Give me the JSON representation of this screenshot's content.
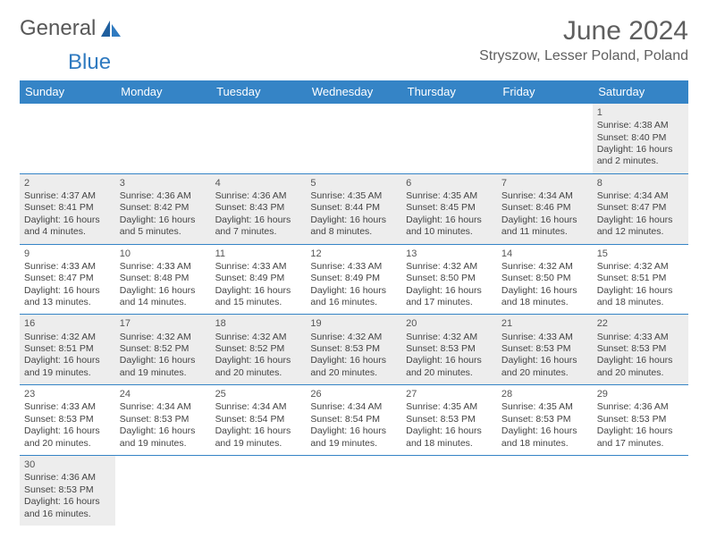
{
  "logo": {
    "part1": "General",
    "part2": "Blue"
  },
  "header": {
    "month_title": "June 2024",
    "location": "Stryszow, Lesser Poland, Poland"
  },
  "colors": {
    "header_bg": "#3584c6",
    "shaded": "#ededed",
    "text": "#444444",
    "border": "#3584c6"
  },
  "calendar": {
    "weekdays": [
      "Sunday",
      "Monday",
      "Tuesday",
      "Wednesday",
      "Thursday",
      "Friday",
      "Saturday"
    ],
    "weeks": [
      [
        {
          "empty": true
        },
        {
          "empty": true
        },
        {
          "empty": true
        },
        {
          "empty": true
        },
        {
          "empty": true
        },
        {
          "empty": true
        },
        {
          "day": "1",
          "sunrise": "Sunrise: 4:38 AM",
          "sunset": "Sunset: 8:40 PM",
          "daylight": "Daylight: 16 hours and 2 minutes.",
          "shaded": true
        }
      ],
      [
        {
          "day": "2",
          "sunrise": "Sunrise: 4:37 AM",
          "sunset": "Sunset: 8:41 PM",
          "daylight": "Daylight: 16 hours and 4 minutes.",
          "shaded": true
        },
        {
          "day": "3",
          "sunrise": "Sunrise: 4:36 AM",
          "sunset": "Sunset: 8:42 PM",
          "daylight": "Daylight: 16 hours and 5 minutes.",
          "shaded": true
        },
        {
          "day": "4",
          "sunrise": "Sunrise: 4:36 AM",
          "sunset": "Sunset: 8:43 PM",
          "daylight": "Daylight: 16 hours and 7 minutes.",
          "shaded": true
        },
        {
          "day": "5",
          "sunrise": "Sunrise: 4:35 AM",
          "sunset": "Sunset: 8:44 PM",
          "daylight": "Daylight: 16 hours and 8 minutes.",
          "shaded": true
        },
        {
          "day": "6",
          "sunrise": "Sunrise: 4:35 AM",
          "sunset": "Sunset: 8:45 PM",
          "daylight": "Daylight: 16 hours and 10 minutes.",
          "shaded": true
        },
        {
          "day": "7",
          "sunrise": "Sunrise: 4:34 AM",
          "sunset": "Sunset: 8:46 PM",
          "daylight": "Daylight: 16 hours and 11 minutes.",
          "shaded": true
        },
        {
          "day": "8",
          "sunrise": "Sunrise: 4:34 AM",
          "sunset": "Sunset: 8:47 PM",
          "daylight": "Daylight: 16 hours and 12 minutes.",
          "shaded": true
        }
      ],
      [
        {
          "day": "9",
          "sunrise": "Sunrise: 4:33 AM",
          "sunset": "Sunset: 8:47 PM",
          "daylight": "Daylight: 16 hours and 13 minutes.",
          "shaded": false
        },
        {
          "day": "10",
          "sunrise": "Sunrise: 4:33 AM",
          "sunset": "Sunset: 8:48 PM",
          "daylight": "Daylight: 16 hours and 14 minutes.",
          "shaded": false
        },
        {
          "day": "11",
          "sunrise": "Sunrise: 4:33 AM",
          "sunset": "Sunset: 8:49 PM",
          "daylight": "Daylight: 16 hours and 15 minutes.",
          "shaded": false
        },
        {
          "day": "12",
          "sunrise": "Sunrise: 4:33 AM",
          "sunset": "Sunset: 8:49 PM",
          "daylight": "Daylight: 16 hours and 16 minutes.",
          "shaded": false
        },
        {
          "day": "13",
          "sunrise": "Sunrise: 4:32 AM",
          "sunset": "Sunset: 8:50 PM",
          "daylight": "Daylight: 16 hours and 17 minutes.",
          "shaded": false
        },
        {
          "day": "14",
          "sunrise": "Sunrise: 4:32 AM",
          "sunset": "Sunset: 8:50 PM",
          "daylight": "Daylight: 16 hours and 18 minutes.",
          "shaded": false
        },
        {
          "day": "15",
          "sunrise": "Sunrise: 4:32 AM",
          "sunset": "Sunset: 8:51 PM",
          "daylight": "Daylight: 16 hours and 18 minutes.",
          "shaded": false
        }
      ],
      [
        {
          "day": "16",
          "sunrise": "Sunrise: 4:32 AM",
          "sunset": "Sunset: 8:51 PM",
          "daylight": "Daylight: 16 hours and 19 minutes.",
          "shaded": true
        },
        {
          "day": "17",
          "sunrise": "Sunrise: 4:32 AM",
          "sunset": "Sunset: 8:52 PM",
          "daylight": "Daylight: 16 hours and 19 minutes.",
          "shaded": true
        },
        {
          "day": "18",
          "sunrise": "Sunrise: 4:32 AM",
          "sunset": "Sunset: 8:52 PM",
          "daylight": "Daylight: 16 hours and 20 minutes.",
          "shaded": true
        },
        {
          "day": "19",
          "sunrise": "Sunrise: 4:32 AM",
          "sunset": "Sunset: 8:53 PM",
          "daylight": "Daylight: 16 hours and 20 minutes.",
          "shaded": true
        },
        {
          "day": "20",
          "sunrise": "Sunrise: 4:32 AM",
          "sunset": "Sunset: 8:53 PM",
          "daylight": "Daylight: 16 hours and 20 minutes.",
          "shaded": true
        },
        {
          "day": "21",
          "sunrise": "Sunrise: 4:33 AM",
          "sunset": "Sunset: 8:53 PM",
          "daylight": "Daylight: 16 hours and 20 minutes.",
          "shaded": true
        },
        {
          "day": "22",
          "sunrise": "Sunrise: 4:33 AM",
          "sunset": "Sunset: 8:53 PM",
          "daylight": "Daylight: 16 hours and 20 minutes.",
          "shaded": true
        }
      ],
      [
        {
          "day": "23",
          "sunrise": "Sunrise: 4:33 AM",
          "sunset": "Sunset: 8:53 PM",
          "daylight": "Daylight: 16 hours and 20 minutes.",
          "shaded": false
        },
        {
          "day": "24",
          "sunrise": "Sunrise: 4:34 AM",
          "sunset": "Sunset: 8:53 PM",
          "daylight": "Daylight: 16 hours and 19 minutes.",
          "shaded": false
        },
        {
          "day": "25",
          "sunrise": "Sunrise: 4:34 AM",
          "sunset": "Sunset: 8:54 PM",
          "daylight": "Daylight: 16 hours and 19 minutes.",
          "shaded": false
        },
        {
          "day": "26",
          "sunrise": "Sunrise: 4:34 AM",
          "sunset": "Sunset: 8:54 PM",
          "daylight": "Daylight: 16 hours and 19 minutes.",
          "shaded": false
        },
        {
          "day": "27",
          "sunrise": "Sunrise: 4:35 AM",
          "sunset": "Sunset: 8:53 PM",
          "daylight": "Daylight: 16 hours and 18 minutes.",
          "shaded": false
        },
        {
          "day": "28",
          "sunrise": "Sunrise: 4:35 AM",
          "sunset": "Sunset: 8:53 PM",
          "daylight": "Daylight: 16 hours and 18 minutes.",
          "shaded": false
        },
        {
          "day": "29",
          "sunrise": "Sunrise: 4:36 AM",
          "sunset": "Sunset: 8:53 PM",
          "daylight": "Daylight: 16 hours and 17 minutes.",
          "shaded": false
        }
      ],
      [
        {
          "day": "30",
          "sunrise": "Sunrise: 4:36 AM",
          "sunset": "Sunset: 8:53 PM",
          "daylight": "Daylight: 16 hours and 16 minutes.",
          "shaded": true
        },
        {
          "empty": true
        },
        {
          "empty": true
        },
        {
          "empty": true
        },
        {
          "empty": true
        },
        {
          "empty": true
        },
        {
          "empty": true
        }
      ]
    ]
  }
}
